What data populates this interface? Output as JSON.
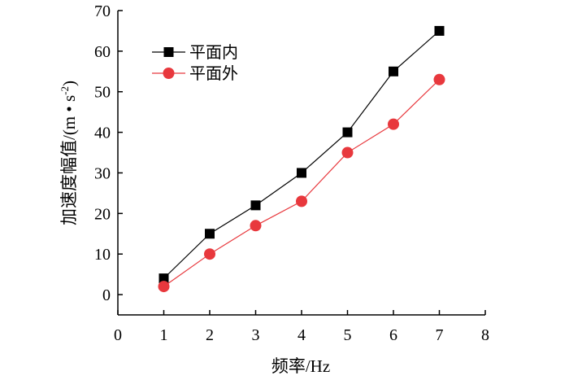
{
  "chart_data": {
    "type": "line",
    "xlabel": "频率/Hz",
    "ylabel_main": "加速度幅值/(m • s",
    "ylabel_sup": "-2",
    "ylabel_close": ")",
    "xlim": [
      0,
      8
    ],
    "ylim": [
      -5,
      70
    ],
    "xticks": [
      0,
      1,
      2,
      3,
      4,
      5,
      6,
      7,
      8
    ],
    "yticks": [
      0,
      10,
      20,
      30,
      40,
      50,
      60,
      70
    ],
    "grid": false,
    "legend_position": "top-left",
    "series": [
      {
        "name": "平面内",
        "marker": "square",
        "color": "#000000",
        "x": [
          1,
          2,
          3,
          4,
          5,
          6,
          7
        ],
        "y": [
          4,
          15,
          22,
          30,
          40,
          55,
          65
        ]
      },
      {
        "name": "平面外",
        "marker": "circle",
        "color": "#e8383d",
        "x": [
          1,
          2,
          3,
          4,
          5,
          6,
          7
        ],
        "y": [
          2,
          10,
          17,
          23,
          35,
          42,
          53
        ]
      }
    ]
  }
}
